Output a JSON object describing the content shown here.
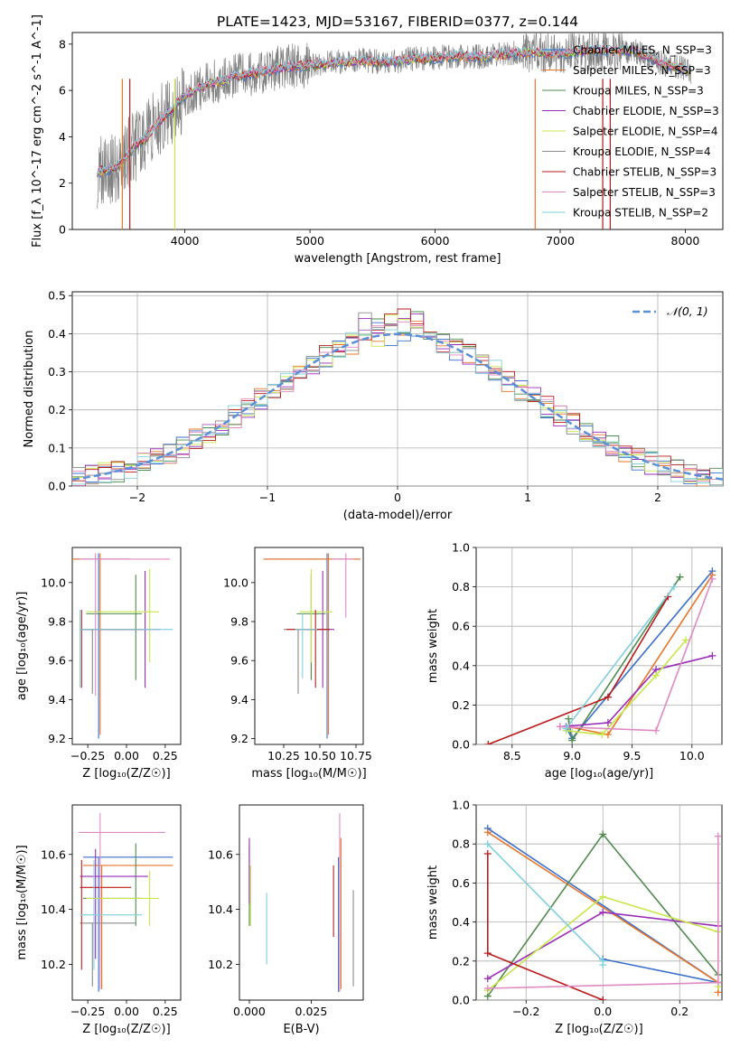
{
  "title": "PLATE=1423, MJD=53167, FIBERID=0377, z=0.144",
  "colors": {
    "s0": "#3a6fcc",
    "s1": "#e8762a",
    "s2": "#4f8a4f",
    "s3": "#9a2db8",
    "s4": "#c7e64a",
    "s5": "#8a8a8a",
    "s6": "#ba1a1a",
    "s7": "#e08ac4",
    "s8": "#7fd0dc",
    "data": "#808080",
    "gauss": "#5b8fd6"
  },
  "chart_data": [
    {
      "type": "line",
      "panel": "spectrum",
      "xlabel": "wavelength [Angstrom, rest frame]",
      "ylabel": "Flux [f_λ 10^-17 erg cm^-2 s^-1 A^-1]",
      "xlim": [
        3100,
        8300
      ],
      "ylim": [
        0,
        8.5
      ],
      "xticks": [
        "4000",
        "5000",
        "6000",
        "7000",
        "8000"
      ],
      "yticks": [
        "0",
        "2",
        "4",
        "6",
        "8"
      ],
      "grid": false,
      "legend_position": "top-right",
      "legend": [
        "Chabrier MILES, N_SSP=3",
        "Salpeter MILES, N_SSP=3",
        "Kroupa MILES, N_SSP=3",
        "Chabrier ELODIE, N_SSP=3",
        "Salpeter ELODIE, N_SSP=4",
        "Kroupa ELODIE, N_SSP=4",
        "Chabrier STELIB, N_SSP=3",
        "Salpeter STELIB, N_SSP=3",
        "Kroupa STELIB, N_SSP=2"
      ],
      "model_x": [
        3300,
        3400,
        3500,
        3600,
        3700,
        3800,
        3900,
        4000,
        4200,
        4400,
        4600,
        4800,
        5000,
        5200,
        5400,
        5600,
        5800,
        6000,
        6200,
        6400,
        6600,
        6800,
        7000,
        7200,
        7400,
        7600,
        7800,
        8000,
        8050
      ],
      "model_y": [
        2.5,
        2.6,
        2.9,
        3.6,
        4.0,
        4.7,
        5.2,
        5.8,
        6.3,
        6.6,
        6.8,
        7.0,
        7.1,
        7.2,
        7.3,
        7.2,
        7.35,
        7.4,
        7.5,
        7.45,
        7.6,
        7.65,
        7.6,
        7.7,
        7.75,
        7.7,
        7.2,
        6.9,
        6.8
      ]
    },
    {
      "type": "line",
      "panel": "residual_hist",
      "xlabel": "(data-model)/error",
      "ylabel": "Normed distribution",
      "xlim": [
        -2.5,
        2.5
      ],
      "ylim": [
        0,
        0.51
      ],
      "xticks": [
        "−2",
        "−1",
        "0",
        "1",
        "2"
      ],
      "yticks": [
        "0.0",
        "0.1",
        "0.2",
        "0.3",
        "0.4",
        "0.5"
      ],
      "grid": true,
      "legend_position": "top-right",
      "legend": [
        "𝒩(0, 1)"
      ]
    },
    {
      "type": "scatter",
      "panel": "age_vs_Z",
      "xlabel": "Z [log₁₀(Z/Z☉)]",
      "ylabel": "age  [log₁₀(age/yr)]",
      "xlim": [
        -0.35,
        0.35
      ],
      "ylim": [
        9.17,
        10.18
      ],
      "xticks": [
        "−0.25",
        "0.00",
        "0.25"
      ],
      "yticks": [
        "9.2",
        "9.4",
        "9.6",
        "9.8",
        "10.0"
      ],
      "series": [
        {
          "x": -0.18,
          "y": 10.12,
          "xerr": [
            0.28,
            0.2
          ],
          "yerr": [
            0.92,
            0.03
          ]
        },
        {
          "x": -0.17,
          "y": 10.12,
          "xerr": [
            0.29,
            0.19
          ],
          "yerr": [
            0.9,
            0.03
          ]
        },
        {
          "x": 0.06,
          "y": 9.84,
          "xerr": [
            0.32,
            0.04
          ],
          "yerr": [
            0.34,
            0.2
          ]
        },
        {
          "x": 0.12,
          "y": 9.76,
          "xerr": [
            0.38,
            0.1
          ],
          "yerr": [
            0.3,
            0.3
          ]
        },
        {
          "x": 0.15,
          "y": 9.85,
          "xerr": [
            0.41,
            0.06
          ],
          "yerr": [
            0.26,
            0.22
          ]
        },
        {
          "x": -0.22,
          "y": 9.76,
          "xerr": [
            0.08,
            0.28
          ],
          "yerr": [
            0.33,
            0.0
          ]
        },
        {
          "x": -0.29,
          "y": 9.76,
          "xerr": [
            0.01,
            0.4
          ],
          "yerr": [
            0.3,
            0.1
          ]
        }
      ]
    },
    {
      "type": "scatter",
      "panel": "age_vs_mass",
      "xlabel": "mass [log₁₀(M/M☉)]",
      "ylabel": "",
      "xlim": [
        10.05,
        10.8
      ],
      "ylim": [
        9.17,
        10.18
      ],
      "xticks": [
        "10.25",
        "10.50",
        "10.75"
      ],
      "yticks": [
        "9.2",
        "9.4",
        "9.6",
        "9.8",
        "10.0"
      ]
    },
    {
      "type": "line",
      "panel": "mass_weight_vs_age",
      "xlabel": "age  [log₁₀(age/yr)]",
      "ylabel": "mass weight",
      "xlim": [
        8.2,
        10.25
      ],
      "ylim": [
        0,
        1.0
      ],
      "xticks": [
        "8.5",
        "9.0",
        "9.5",
        "10.0"
      ],
      "yticks": [
        "0.0",
        "0.2",
        "0.4",
        "0.6",
        "0.8",
        "1.0"
      ],
      "grid": true,
      "series": [
        {
          "x": [
            8.95,
            9.0,
            10.17
          ],
          "y": [
            0.09,
            0.03,
            0.88
          ]
        },
        {
          "x": [
            8.97,
            9.3,
            10.17
          ],
          "y": [
            0.09,
            0.05,
            0.86
          ]
        },
        {
          "x": [
            8.97,
            9.0,
            9.9
          ],
          "y": [
            0.13,
            0.02,
            0.85
          ]
        },
        {
          "x": [
            8.9,
            9.3,
            9.7,
            10.17
          ],
          "y": [
            0.09,
            0.11,
            0.38,
            0.45
          ]
        },
        {
          "x": [
            8.95,
            9.25,
            9.7,
            9.95
          ],
          "y": [
            0.07,
            0.05,
            0.35,
            0.53
          ]
        },
        {
          "x": [
            8.3,
            9.3,
            9.8
          ],
          "y": [
            0.0,
            0.24,
            0.75
          ]
        },
        {
          "x": [
            8.9,
            9.7,
            10.17
          ],
          "y": [
            0.09,
            0.07,
            0.84
          ]
        },
        {
          "x": [
            8.95,
            9.85
          ],
          "y": [
            0.08,
            0.8
          ]
        }
      ]
    },
    {
      "type": "scatter",
      "panel": "mass_vs_Z",
      "xlabel": "Z [log₁₀(Z/Z☉)]",
      "ylabel": "mass [log₁₀(M/M☉)]",
      "xlim": [
        -0.35,
        0.35
      ],
      "ylim": [
        10.07,
        10.78
      ],
      "xticks": [
        "−0.25",
        "0.00",
        "0.25"
      ],
      "yticks": [
        "10.2",
        "10.4",
        "10.6"
      ]
    },
    {
      "type": "scatter",
      "panel": "mass_vs_EBV",
      "xlabel": "E(B-V)",
      "ylabel": "",
      "xlim": [
        -0.004,
        0.046
      ],
      "ylim": [
        10.07,
        10.78
      ],
      "xticks": [
        "0.000",
        "0.025"
      ],
      "yticks": [
        "10.2",
        "10.4",
        "10.6"
      ]
    },
    {
      "type": "line",
      "panel": "mass_weight_vs_Z",
      "xlabel": "Z [log₁₀(Z/Z☉)]",
      "ylabel": "mass weight",
      "xlim": [
        -0.33,
        0.31
      ],
      "ylim": [
        0,
        1.0
      ],
      "xticks": [
        "−0.2",
        "0.0",
        "0.2"
      ],
      "yticks": [
        "0.0",
        "0.2",
        "0.4",
        "0.6",
        "0.8",
        "1.0"
      ],
      "grid": true
    }
  ]
}
